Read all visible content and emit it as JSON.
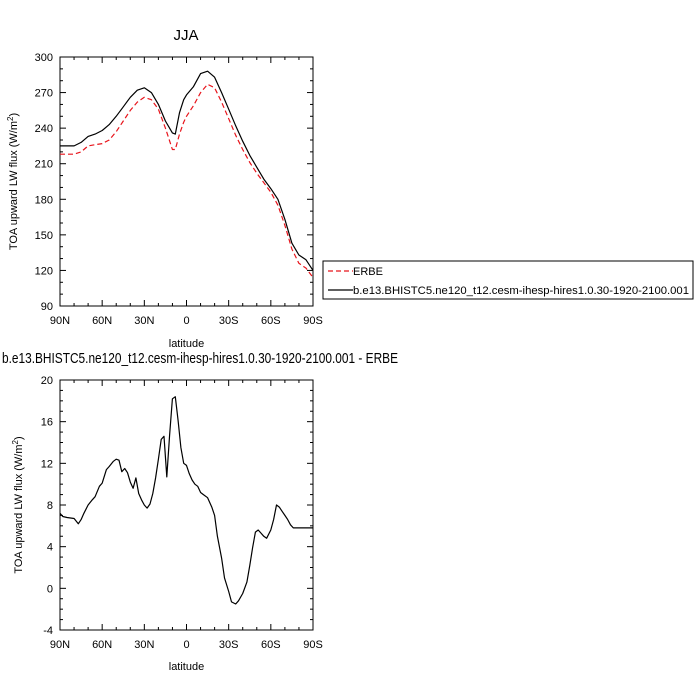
{
  "chart_data": [
    {
      "type": "line",
      "title": "JJA",
      "xlabel": "latitude",
      "ylabel": "TOA upward LW flux (W/m",
      "ylabel_sup": "2",
      "ylabel_close": ")",
      "xlim": [
        90,
        -90
      ],
      "ylim": [
        90,
        300
      ],
      "x_ticks": [
        {
          "value": 90,
          "label": "90N"
        },
        {
          "value": 60,
          "label": "60N"
        },
        {
          "value": 30,
          "label": "30N"
        },
        {
          "value": 0,
          "label": "0"
        },
        {
          "value": -30,
          "label": "30S"
        },
        {
          "value": -60,
          "label": "60S"
        },
        {
          "value": -90,
          "label": "90S"
        }
      ],
      "y_ticks": [
        90,
        120,
        150,
        180,
        210,
        240,
        270,
        300
      ],
      "legend": {
        "placement": "right",
        "entries": [
          {
            "label": "ERBE",
            "color": "#e8141b",
            "dash": "dashed"
          },
          {
            "label": "b.e13.BHISTC5.ne120_t12.cesm-ihesp-hires1.0.30-1920-2100.001",
            "color": "#000000",
            "dash": "solid"
          }
        ]
      },
      "series": [
        {
          "name": "ERBE",
          "color": "#e8141b",
          "dash": "dashed",
          "x": [
            90,
            85,
            80,
            75,
            70,
            65,
            60,
            55,
            50,
            45,
            40,
            35,
            30,
            25,
            20,
            15,
            10,
            8,
            5,
            2,
            0,
            -5,
            -10,
            -15,
            -20,
            -25,
            -30,
            -35,
            -40,
            -45,
            -50,
            -55,
            -60,
            -65,
            -70,
            -75,
            -80,
            -85,
            -90
          ],
          "y": [
            218,
            218,
            218,
            220,
            225,
            226,
            227,
            230,
            237,
            246,
            255,
            262,
            266,
            264,
            256,
            240,
            222,
            222,
            235,
            245,
            250,
            259,
            270,
            277,
            274,
            262,
            248,
            234,
            222,
            211,
            202,
            194,
            186,
            175,
            158,
            138,
            126,
            122,
            114
          ]
        },
        {
          "name": "b.e13.BHISTC5.ne120_t12.cesm-ihesp-hires1.0.30-1920-2100.001",
          "color": "#000000",
          "dash": "solid",
          "x": [
            90,
            85,
            80,
            75,
            70,
            65,
            60,
            55,
            50,
            45,
            40,
            35,
            30,
            25,
            20,
            15,
            10,
            8,
            5,
            2,
            0,
            -5,
            -10,
            -15,
            -20,
            -25,
            -30,
            -35,
            -40,
            -45,
            -50,
            -55,
            -60,
            -65,
            -70,
            -75,
            -80,
            -85,
            -90
          ],
          "y": [
            225,
            225,
            225,
            228,
            233,
            235,
            238,
            243,
            250,
            258,
            266,
            272,
            274,
            270,
            260,
            246,
            236,
            235,
            253,
            264,
            268,
            275,
            286,
            288,
            283,
            270,
            256,
            242,
            229,
            217,
            207,
            197,
            189,
            180,
            163,
            143,
            133,
            129,
            120
          ]
        }
      ]
    },
    {
      "type": "line",
      "title": "b.e13.BHISTC5.ne120_t12.cesm-ihesp-hires1.0.30-1920-2100.001 - ERBE",
      "xlabel": "latitude",
      "ylabel": "TOA upward LW flux (W/m",
      "ylabel_sup": "2",
      "ylabel_close": ")",
      "xlim": [
        90,
        -90
      ],
      "ylim": [
        -4,
        20
      ],
      "x_ticks": [
        {
          "value": 90,
          "label": "90N"
        },
        {
          "value": 60,
          "label": "60N"
        },
        {
          "value": 30,
          "label": "30N"
        },
        {
          "value": 0,
          "label": "0"
        },
        {
          "value": -30,
          "label": "30S"
        },
        {
          "value": -60,
          "label": "60S"
        },
        {
          "value": -90,
          "label": "90S"
        }
      ],
      "y_ticks": [
        -4,
        0,
        4,
        8,
        12,
        16,
        20
      ],
      "series": [
        {
          "color": "#000000",
          "dash": "solid",
          "x": [
            90,
            88,
            85,
            80,
            77,
            75,
            73,
            70,
            67,
            65,
            62,
            60,
            57,
            55,
            52,
            50,
            48,
            46,
            44,
            42,
            40,
            38,
            36,
            34,
            32,
            30,
            28,
            26,
            24,
            22,
            20,
            18,
            16,
            14,
            12,
            10,
            8,
            6,
            4,
            2,
            0,
            -2,
            -4,
            -6,
            -8,
            -10,
            -12,
            -15,
            -18,
            -20,
            -22,
            -25,
            -27,
            -30,
            -32,
            -35,
            -37,
            -40,
            -43,
            -45,
            -47,
            -49,
            -51,
            -53,
            -55,
            -57,
            -60,
            -62,
            -64,
            -66,
            -68,
            -70,
            -72,
            -74,
            -76,
            -78,
            -80,
            -82,
            -84,
            -86,
            -88,
            -90
          ],
          "y": [
            7.2,
            6.9,
            6.8,
            6.7,
            6.2,
            6.6,
            7.2,
            8.0,
            8.5,
            8.8,
            9.8,
            10.1,
            11.4,
            11.7,
            12.2,
            12.4,
            12.3,
            11.2,
            11.5,
            11.1,
            10.2,
            9.6,
            10.6,
            9.1,
            8.5,
            8.0,
            7.7,
            8.1,
            9.1,
            10.6,
            12.4,
            14.3,
            14.6,
            10.7,
            14.7,
            18.2,
            18.4,
            16.1,
            13.5,
            12.0,
            11.8,
            11.0,
            10.4,
            10.0,
            9.8,
            9.2,
            9.0,
            8.7,
            7.8,
            7.0,
            5.0,
            2.9,
            1.0,
            -0.3,
            -1.3,
            -1.5,
            -1.2,
            -0.5,
            0.6,
            2.2,
            3.9,
            5.4,
            5.6,
            5.3,
            5.0,
            4.8,
            5.6,
            6.6,
            8.0,
            7.8,
            7.4,
            7.0,
            6.6,
            6.1,
            5.8,
            5.8,
            5.8,
            5.8,
            5.8,
            5.8,
            5.8,
            5.8
          ]
        }
      ]
    }
  ]
}
